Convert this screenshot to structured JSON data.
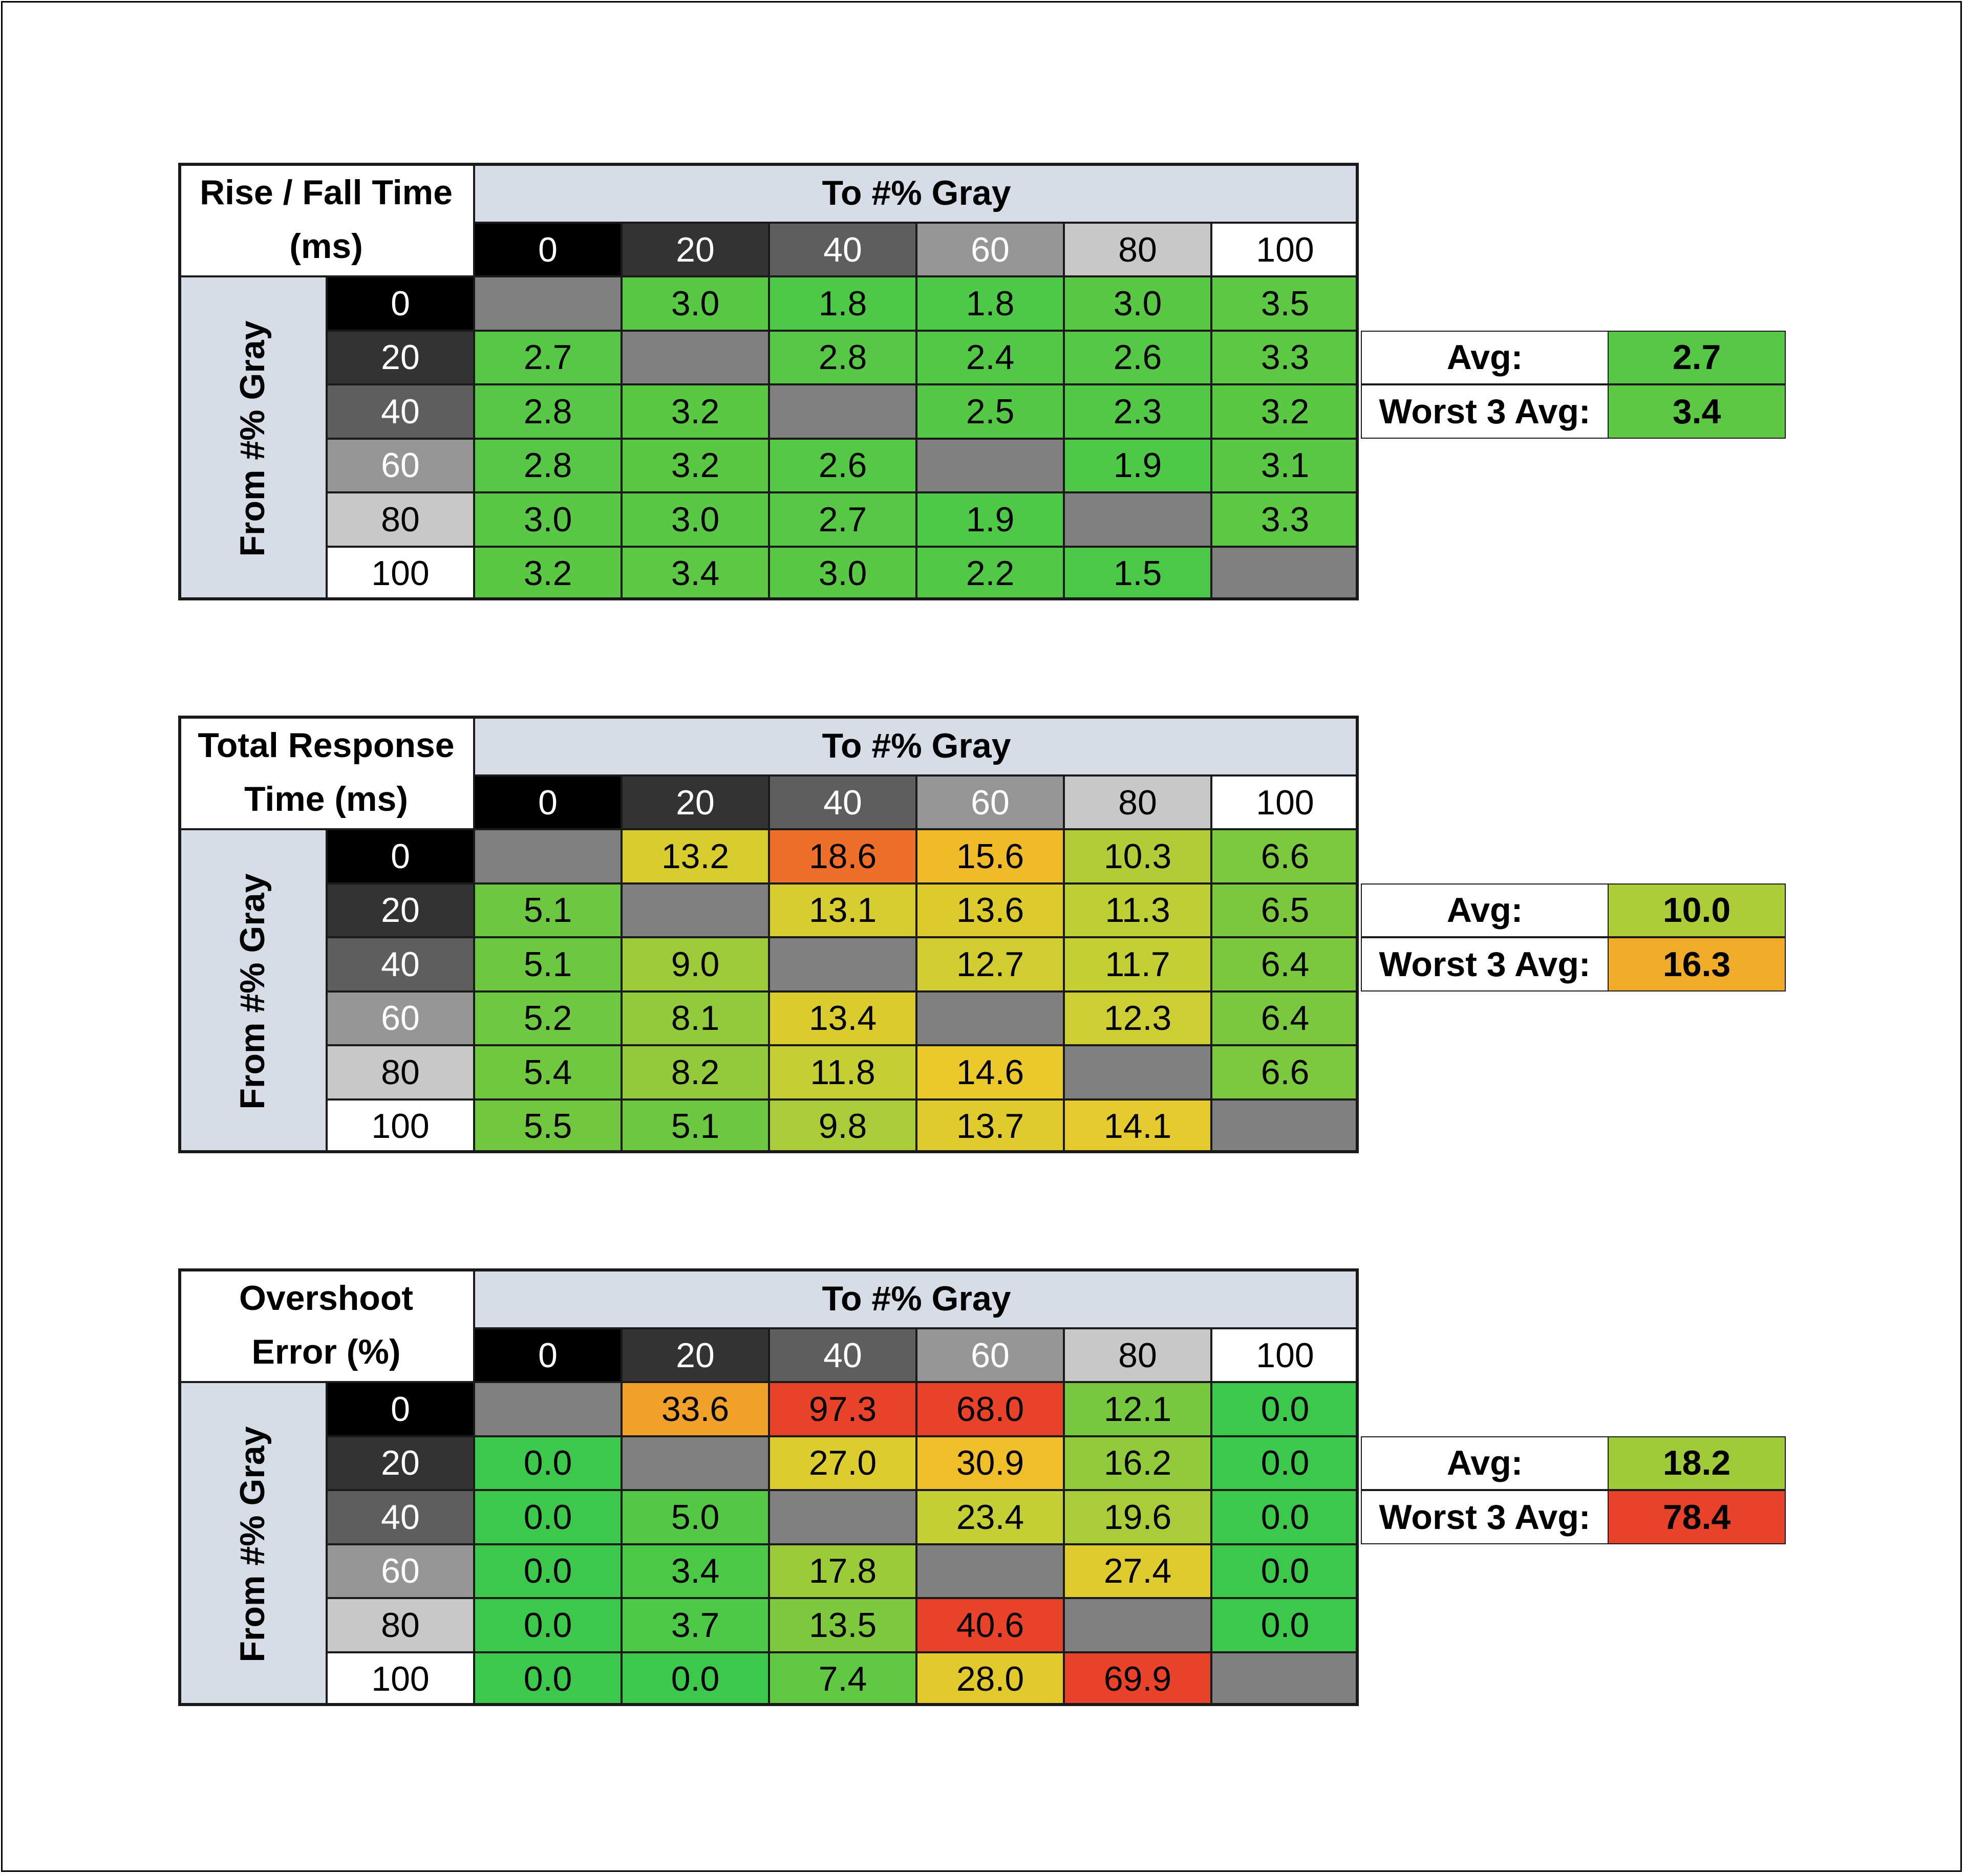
{
  "chart_data": [
    {
      "type": "heatmap",
      "title": "Rise / Fall Time (ms)",
      "col_header": "To #% Gray",
      "row_header": "From #% Gray",
      "categories": [
        "0",
        "20",
        "40",
        "60",
        "80",
        "100"
      ],
      "rows": [
        [
          null,
          "3.0",
          "1.8",
          "1.8",
          "3.0",
          "3.5"
        ],
        [
          "2.7",
          null,
          "2.8",
          "2.4",
          "2.6",
          "3.3"
        ],
        [
          "2.8",
          "3.2",
          null,
          "2.5",
          "2.3",
          "3.2"
        ],
        [
          "2.8",
          "3.2",
          "2.6",
          null,
          "1.9",
          "3.1"
        ],
        [
          "3.0",
          "3.0",
          "2.7",
          "1.9",
          null,
          "3.3"
        ],
        [
          "3.2",
          "3.4",
          "3.0",
          "2.2",
          "1.5",
          null
        ]
      ],
      "summary": [
        {
          "label": "Avg:",
          "value": "2.7"
        },
        {
          "label": "Worst 3 Avg:",
          "value": "3.4"
        }
      ],
      "color_scale": {
        "min": 0,
        "max": 20
      }
    },
    {
      "type": "heatmap",
      "title": "Total Response Time (ms)",
      "col_header": "To #% Gray",
      "row_header": "From #% Gray",
      "categories": [
        "0",
        "20",
        "40",
        "60",
        "80",
        "100"
      ],
      "rows": [
        [
          null,
          "13.2",
          "18.6",
          "15.6",
          "10.3",
          "6.6"
        ],
        [
          "5.1",
          null,
          "13.1",
          "13.6",
          "11.3",
          "6.5"
        ],
        [
          "5.1",
          "9.0",
          null,
          "12.7",
          "11.7",
          "6.4"
        ],
        [
          "5.2",
          "8.1",
          "13.4",
          null,
          "12.3",
          "6.4"
        ],
        [
          "5.4",
          "8.2",
          "11.8",
          "14.6",
          null,
          "6.6"
        ],
        [
          "5.5",
          "5.1",
          "9.8",
          "13.7",
          "14.1",
          null
        ]
      ],
      "summary": [
        {
          "label": "Avg:",
          "value": "10.0"
        },
        {
          "label": "Worst 3 Avg:",
          "value": "16.3"
        }
      ],
      "color_scale": {
        "min": 0,
        "max": 20
      }
    },
    {
      "type": "heatmap",
      "title": "Overshoot Error (%)",
      "col_header": "To #% Gray",
      "row_header": "From #% Gray",
      "categories": [
        "0",
        "20",
        "40",
        "60",
        "80",
        "100"
      ],
      "rows": [
        [
          null,
          "33.6",
          "97.3",
          "68.0",
          "12.1",
          "0.0"
        ],
        [
          "0.0",
          null,
          "27.0",
          "30.9",
          "16.2",
          "0.0"
        ],
        [
          "0.0",
          "5.0",
          null,
          "23.4",
          "19.6",
          "0.0"
        ],
        [
          "0.0",
          "3.4",
          "17.8",
          null,
          "27.4",
          "0.0"
        ],
        [
          "0.0",
          "3.7",
          "13.5",
          "40.6",
          null,
          "0.0"
        ],
        [
          "0.0",
          "0.0",
          "7.4",
          "28.0",
          "69.9",
          null
        ]
      ],
      "summary": [
        {
          "label": "Avg:",
          "value": "18.2"
        },
        {
          "label": "Worst 3 Avg:",
          "value": "78.4"
        }
      ],
      "color_scale": {
        "min": 0,
        "max": 40
      }
    }
  ],
  "colors": {
    "header_blue_gray": "#d6dde6",
    "empty_cell": "#808080",
    "good": "#3cc84a",
    "mid": "#d4cf2e",
    "bad": "#e8422a",
    "gray_levels": [
      "#000000",
      "#333333",
      "#5e5e5e",
      "#969696",
      "#c8c8c8",
      "#ffffff"
    ]
  }
}
